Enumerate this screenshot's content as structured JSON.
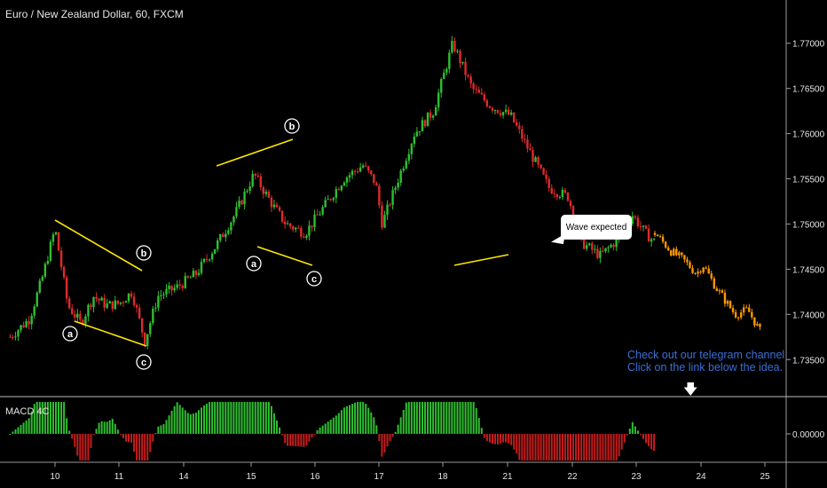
{
  "header": {
    "symbol_label": "Euro / New Zealand Dollar, 60, FXCM",
    "macd_label": "MACD 4C"
  },
  "annotations": {
    "callout_text": "Wave expected",
    "telegram_line1": "Check out our telegram channel.",
    "telegram_line2": "Click on the link below the idea.",
    "wave_labels": [
      "a",
      "b",
      "c",
      "a",
      "b",
      "c"
    ]
  },
  "colors": {
    "up": "#2fbf2f",
    "down": "#e02a2a",
    "projection": "#ff9800",
    "trendline": "#ffe600",
    "macd_up": "#2fbf2f",
    "macd_down": "#c81c1c"
  },
  "chart_data": {
    "type": "candlestick",
    "title": "Euro / New Zealand Dollar, 60, FXCM",
    "x_ticks": [
      "10",
      "11",
      "14",
      "15",
      "16",
      "17",
      "18",
      "21",
      "22",
      "23",
      "24",
      "25"
    ],
    "y_ticks": [
      "1.77000",
      "1.76500",
      "1.76000",
      "1.75500",
      "1.75000",
      "1.74500",
      "1.74000",
      "1.73500"
    ],
    "ylim": [
      1.731,
      1.774
    ],
    "macd_ticks": [
      "0.00000"
    ],
    "price_path": [
      [
        9.3,
        1.7375
      ],
      [
        9.6,
        1.7395
      ],
      [
        9.8,
        1.744
      ],
      [
        10.0,
        1.7495
      ],
      [
        10.2,
        1.741
      ],
      [
        10.4,
        1.739
      ],
      [
        10.6,
        1.742
      ],
      [
        10.8,
        1.741
      ],
      [
        11.0,
        1.7412
      ],
      [
        11.2,
        1.7425
      ],
      [
        11.4,
        1.737
      ],
      [
        11.6,
        1.742
      ],
      [
        11.9,
        1.743
      ],
      [
        12.2,
        1.7445
      ],
      [
        12.5,
        1.7475
      ],
      [
        12.8,
        1.751
      ],
      [
        13.1,
        1.7555
      ],
      [
        13.4,
        1.752
      ],
      [
        13.6,
        1.75
      ],
      [
        13.9,
        1.749
      ],
      [
        14.2,
        1.752
      ],
      [
        14.5,
        1.755
      ],
      [
        14.8,
        1.7565
      ],
      [
        15.0,
        1.7545
      ],
      [
        15.1,
        1.75
      ],
      [
        15.3,
        1.754
      ],
      [
        15.6,
        1.76
      ],
      [
        15.9,
        1.7625
      ],
      [
        16.2,
        1.77
      ],
      [
        16.5,
        1.765
      ],
      [
        16.8,
        1.763
      ],
      [
        17.1,
        1.762
      ],
      [
        17.4,
        1.758
      ],
      [
        17.7,
        1.754
      ],
      [
        18.0,
        1.753
      ],
      [
        18.2,
        1.748
      ],
      [
        18.5,
        1.7465
      ],
      [
        18.8,
        1.7485
      ],
      [
        19.0,
        1.751
      ],
      [
        19.2,
        1.749
      ],
      [
        19.35,
        1.748
      ]
    ],
    "projection_path": [
      [
        19.35,
        1.749
      ],
      [
        19.6,
        1.747
      ],
      [
        19.8,
        1.746
      ],
      [
        20.0,
        1.7445
      ],
      [
        20.1,
        1.7455
      ],
      [
        20.3,
        1.743
      ],
      [
        20.5,
        1.741
      ],
      [
        20.6,
        1.74
      ],
      [
        20.8,
        1.7405
      ],
      [
        21.0,
        1.738
      ]
    ]
  }
}
